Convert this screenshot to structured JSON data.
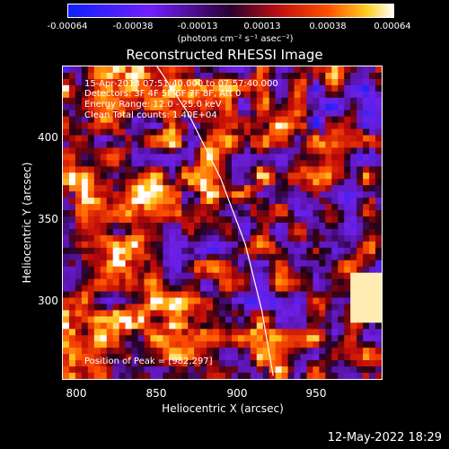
{
  "chart_data": {
    "type": "heatmap",
    "title": "Reconstructed RHESSI Image",
    "xlabel": "Heliocentric X (arcsec)",
    "ylabel": "Heliocentric Y (arcsec)",
    "xlim": [
      794,
      988
    ],
    "ylim": [
      248,
      438
    ],
    "xticks": [
      "800",
      "850",
      "900",
      "950"
    ],
    "yticks": [
      "300",
      "350",
      "400"
    ],
    "colorbar": {
      "ticks": [
        "-0.00064",
        "-0.00038",
        "-0.00013",
        "0.00013",
        "0.00038",
        "0.00064"
      ],
      "units_label": "(photons cm⁻² s⁻¹ asec⁻²)",
      "range": [
        -0.00064,
        0.00064
      ]
    },
    "annotations": [
      "15-Apr-2013 07:51:40.000 to 07:57:40.000",
      "Detectors: 3F 4F 5F 6F 7F 8F, Att 0",
      "Energy Range: 12.0 - 25.0 keV",
      "Clean    Total counts: 1.40E+04"
    ],
    "peak_label": "Position of Peak = [982,297]",
    "limb_curve": {
      "color": "#ffffff"
    }
  },
  "datestamp": "12-May-2022 18:29"
}
